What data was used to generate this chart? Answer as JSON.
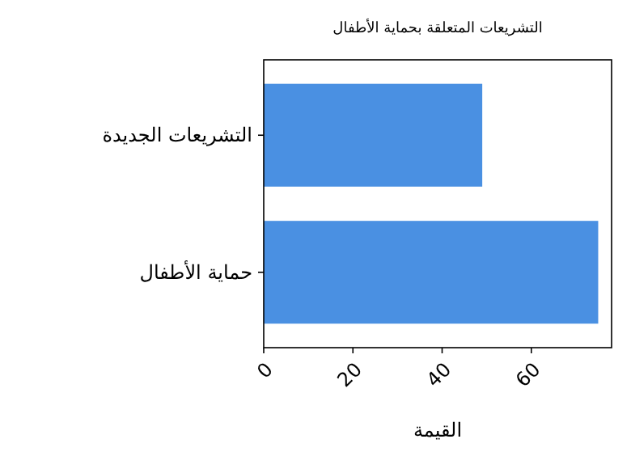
{
  "chart_data": {
    "type": "bar",
    "orientation": "horizontal",
    "title": "التشريعات المتعلقة بحماية الأطفال",
    "categories": [
      "التشريعات الجديدة",
      "حماية الأطفال"
    ],
    "values": [
      49,
      75
    ],
    "color": "#4a90e2",
    "xlabel": "القيمة",
    "xlim": [
      0,
      78
    ],
    "xticks": [
      0,
      20,
      40,
      60
    ],
    "grid": false
  }
}
